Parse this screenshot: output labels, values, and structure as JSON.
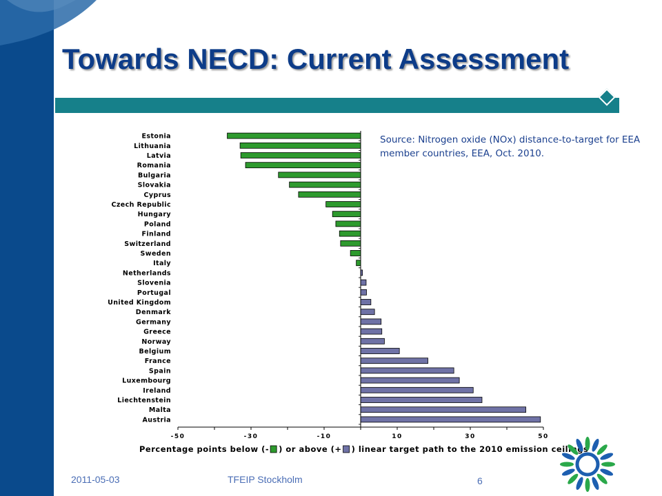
{
  "slide": {
    "title": "Towards NECD: Current Assessment",
    "source": "Source: Nitrogen oxide (NOx) distance-to-target for EEA member countries, EEA, Oct. 2010.",
    "date": "2011-05-03",
    "event": "TFEIP Stockholm",
    "page": "6"
  },
  "colors": {
    "sidebar": "#0a4a8c",
    "accent": "#16808a",
    "title": "#0d3c88",
    "below_bar": "#2e9a2e",
    "above_bar": "#6f72a6"
  },
  "chart_data": {
    "type": "bar",
    "orientation": "horizontal",
    "categories": [
      "Estonia",
      "Lithuania",
      "Latvia",
      "Romania",
      "Bulgaria",
      "Slovakia",
      "Cyprus",
      "Czech Republic",
      "Hungary",
      "Poland",
      "Finland",
      "Switzerland",
      "Sweden",
      "Italy",
      "Netherlands",
      "Slovenia",
      "Portugal",
      "United Kingdom",
      "Denmark",
      "Germany",
      "Greece",
      "Norway",
      "Belgium",
      "France",
      "Spain",
      "Luxembourg",
      "Ireland",
      "Liechtenstein",
      "Malta",
      "Austria"
    ],
    "values": [
      -36.5,
      -33,
      -32.8,
      -31.5,
      -22.5,
      -19.5,
      -17,
      -9.5,
      -7.7,
      -6.8,
      -5.8,
      -5.5,
      -2.8,
      -1.2,
      0.5,
      1.5,
      1.6,
      2.8,
      3.8,
      5.6,
      5.8,
      6.5,
      10.6,
      18.4,
      25.5,
      27,
      30.8,
      33.2,
      45.2,
      49.2
    ],
    "xlim": [
      -50,
      50
    ],
    "xticks": [
      "-50",
      "-30",
      "-10",
      "10",
      "30",
      "50"
    ],
    "xlabel_before": "Percentage points below (-",
    "xlabel_middle": ") or above (+",
    "xlabel_after": ") linear target path to the 2010 emission ceilings",
    "grid": false
  }
}
